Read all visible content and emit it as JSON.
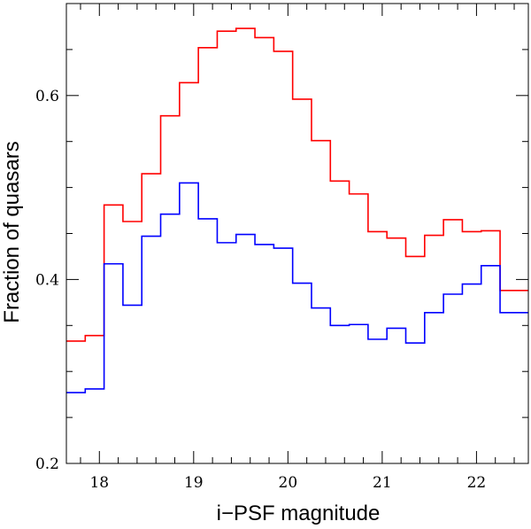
{
  "chart_data": {
    "type": "line",
    "style": "step",
    "title": "",
    "xlabel": "i−PSF magnitude",
    "ylabel": "Fraction of quasars",
    "xlim": [
      17.65,
      22.55
    ],
    "ylim": [
      0.2,
      0.7
    ],
    "grid": false,
    "x_ticks": [
      18,
      19,
      20,
      21,
      22
    ],
    "x_tick_labels": [
      "18",
      "19",
      "20",
      "21",
      "22"
    ],
    "y_ticks": [
      0.2,
      0.4,
      0.6
    ],
    "y_tick_labels": [
      "0.2",
      "0.4",
      "0.6"
    ],
    "bin_edges": [
      17.65,
      17.85,
      18.05,
      18.25,
      18.45,
      18.65,
      18.85,
      19.05,
      19.25,
      19.45,
      19.65,
      19.85,
      20.05,
      20.25,
      20.45,
      20.65,
      20.85,
      21.05,
      21.25,
      21.45,
      21.65,
      21.85,
      22.05,
      22.25,
      22.45,
      22.55
    ],
    "series": [
      {
        "name": "red",
        "color": "#ff0000",
        "values": [
          0.333,
          0.339,
          0.481,
          0.463,
          0.515,
          0.578,
          0.614,
          0.652,
          0.67,
          0.673,
          0.663,
          0.648,
          0.596,
          0.551,
          0.507,
          0.493,
          0.452,
          0.445,
          0.425,
          0.448,
          0.465,
          0.452,
          0.453,
          0.388,
          0.388
        ]
      },
      {
        "name": "blue",
        "color": "#0000ff",
        "values": [
          0.277,
          0.281,
          0.417,
          0.372,
          0.447,
          0.471,
          0.505,
          0.466,
          0.44,
          0.449,
          0.438,
          0.434,
          0.396,
          0.369,
          0.35,
          0.351,
          0.335,
          0.347,
          0.331,
          0.364,
          0.384,
          0.395,
          0.415,
          0.364,
          0.364
        ]
      }
    ]
  }
}
